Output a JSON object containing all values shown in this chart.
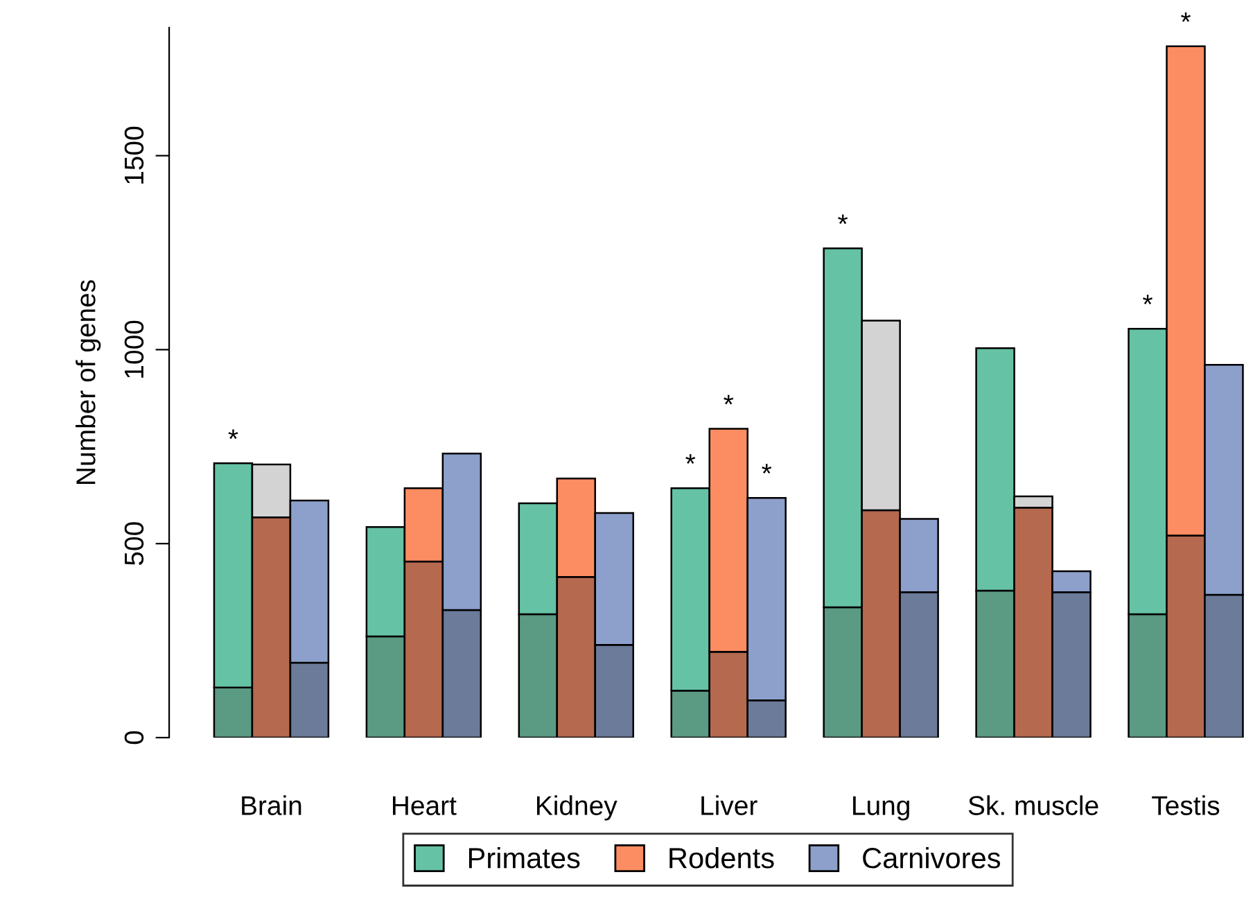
{
  "chart_data": {
    "type": "bar",
    "ylabel": "Number of genes",
    "categories": [
      null,
      "Brain",
      null,
      null,
      null,
      "Heart",
      null,
      null,
      null,
      "Kidney",
      null,
      null,
      null,
      "Liver",
      null,
      null,
      null,
      "Lung",
      null,
      null,
      null,
      "Sk. muscle",
      null,
      null,
      null,
      "Testis",
      null
    ],
    "stacked": true,
    "ylim": [
      0,
      1830
    ],
    "yticks": [
      0,
      500,
      1000,
      1500
    ],
    "grid": false,
    "legend": "bottom",
    "series": [
      {
        "color": "#5b9a83",
        "values": [
          129,
          null,
          null,
          null,
          261,
          null,
          null,
          null,
          318,
          null,
          null,
          null,
          121,
          null,
          null,
          null,
          336,
          null,
          null,
          null,
          379,
          null,
          null,
          null,
          318,
          null,
          null
        ]
      },
      {
        "name": "Primates",
        "color": "#66c2a5",
        "values": [
          578,
          null,
          null,
          null,
          282,
          null,
          null,
          null,
          286,
          null,
          null,
          null,
          522,
          null,
          null,
          null,
          925,
          null,
          null,
          null,
          625,
          null,
          null,
          null,
          736,
          null,
          null
        ],
        "value_labels": [
          "*",
          null,
          null,
          null,
          null,
          null,
          null,
          null,
          null,
          null,
          null,
          null,
          "*",
          null,
          null,
          null,
          "*",
          null,
          null,
          null,
          null,
          null,
          null,
          null,
          "*",
          null,
          null
        ]
      },
      {
        "color": "#b5694f",
        "values": [
          null,
          568,
          null,
          null,
          null,
          454,
          null,
          null,
          null,
          414,
          null,
          null,
          null,
          221,
          null,
          null,
          null,
          586,
          null,
          null,
          null,
          593,
          null,
          null,
          null,
          521,
          null
        ]
      },
      {
        "name": "Rodents",
        "color": "#fc8d62",
        "values": [
          null,
          null,
          null,
          null,
          null,
          189,
          null,
          null,
          null,
          254,
          null,
          null,
          null,
          575,
          null,
          null,
          null,
          null,
          null,
          null,
          null,
          null,
          null,
          null,
          null,
          1261,
          null
        ],
        "value_labels": [
          null,
          null,
          null,
          null,
          null,
          null,
          null,
          null,
          null,
          null,
          null,
          null,
          null,
          "*",
          null,
          null,
          null,
          null,
          null,
          null,
          null,
          null,
          null,
          null,
          null,
          "*",
          null
        ]
      },
      {
        "color": "#d3d3d3",
        "values": [
          null,
          136,
          null,
          null,
          null,
          null,
          null,
          null,
          null,
          null,
          null,
          null,
          null,
          null,
          null,
          null,
          null,
          489,
          null,
          null,
          null,
          29,
          null,
          null,
          null,
          null,
          null
        ]
      },
      {
        "color": "#6b7b99",
        "values": [
          null,
          null,
          193,
          null,
          null,
          null,
          329,
          null,
          null,
          null,
          239,
          null,
          null,
          null,
          96,
          null,
          null,
          null,
          375,
          null,
          null,
          null,
          375,
          null,
          null,
          null,
          368
        ]
      },
      {
        "name": "Carnivores",
        "color": "#8da0cb",
        "values": [
          null,
          null,
          418,
          null,
          null,
          null,
          403,
          null,
          null,
          null,
          340,
          null,
          null,
          null,
          522,
          null,
          null,
          null,
          189,
          null,
          null,
          null,
          54,
          null,
          null,
          null,
          593
        ],
        "value_labels": [
          null,
          null,
          null,
          null,
          null,
          null,
          null,
          null,
          null,
          null,
          null,
          null,
          null,
          null,
          "*",
          null,
          null,
          null,
          null,
          null,
          null,
          null,
          null,
          null,
          null,
          null,
          null
        ]
      }
    ]
  }
}
